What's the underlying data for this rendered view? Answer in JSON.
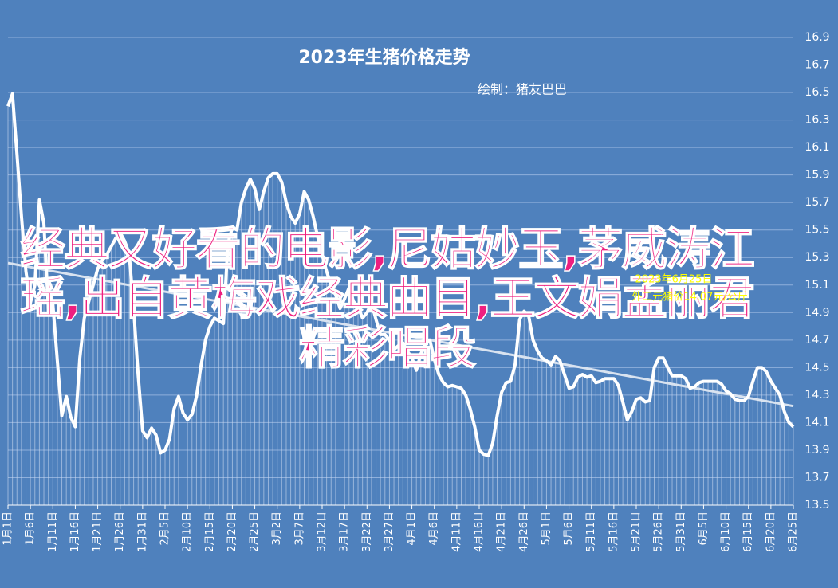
{
  "chart_data": {
    "type": "line",
    "title": "2023年生猪价格走势",
    "subtitle": "绘制：猪友巴巴",
    "annotations": [
      "2023年6月25日",
      "外三元猪价14.07元/公斤"
    ],
    "categories": [
      "1月1日",
      null,
      null,
      null,
      null,
      "1月6日",
      null,
      null,
      null,
      null,
      "1月11日",
      null,
      null,
      null,
      null,
      "1月16日",
      null,
      null,
      null,
      null,
      "1月21日",
      null,
      null,
      null,
      null,
      "1月26日",
      null,
      null,
      null,
      null,
      "1月31日",
      null,
      null,
      null,
      null,
      "2月5日",
      null,
      null,
      null,
      null,
      "2月10日",
      null,
      null,
      null,
      null,
      "2月15日",
      null,
      null,
      null,
      null,
      "2月20日",
      null,
      null,
      null,
      null,
      "2月25日",
      null,
      null,
      null,
      null,
      "3月2日",
      null,
      null,
      null,
      null,
      "3月7日",
      null,
      null,
      null,
      null,
      "3月12日",
      null,
      null,
      null,
      null,
      "3月17日",
      null,
      null,
      null,
      null,
      "3月22日",
      null,
      null,
      null,
      null,
      "3月27日",
      null,
      null,
      null,
      null,
      "4月1日",
      null,
      null,
      null,
      null,
      "4月6日",
      null,
      null,
      null,
      null,
      "4月11日",
      null,
      null,
      null,
      null,
      "4月16日",
      null,
      null,
      null,
      null,
      "4月21日",
      null,
      null,
      null,
      null,
      "4月26日",
      null,
      null,
      null,
      null,
      "5月1日",
      null,
      null,
      null,
      null,
      "5月6日",
      null,
      null,
      null,
      null,
      "5月11日",
      null,
      null,
      null,
      null,
      "5月16日",
      null,
      null,
      null,
      null,
      "5月21日",
      null,
      null,
      null,
      null,
      "5月26日",
      null,
      null,
      null,
      null,
      "5月31日",
      null,
      null,
      null,
      null,
      "6月5日",
      null,
      null,
      null,
      null,
      "6月10日",
      null,
      null,
      null,
      null,
      "6月15日",
      null,
      null,
      null,
      null,
      "6月20日",
      null,
      null,
      null,
      null,
      "6月25日"
    ],
    "values": [
      16.4,
      16.49,
      16.05,
      15.6,
      15.2,
      14.97,
      15.1,
      15.72,
      15.55,
      14.93,
      14.96,
      14.55,
      14.15,
      14.29,
      14.14,
      14.07,
      14.57,
      14.86,
      14.98,
      15.1,
      15.22,
      15.28,
      15.32,
      15.38,
      15.44,
      15.48,
      15.42,
      15.33,
      14.93,
      14.45,
      14.04,
      13.99,
      14.06,
      14.01,
      13.88,
      13.9,
      13.98,
      14.2,
      14.29,
      14.17,
      14.12,
      14.16,
      14.29,
      14.51,
      14.7,
      14.8,
      14.86,
      14.84,
      14.82,
      15.4,
      15.52,
      15.5,
      15.7,
      15.8,
      15.87,
      15.8,
      15.65,
      15.78,
      15.88,
      15.91,
      15.91,
      15.85,
      15.7,
      15.6,
      15.55,
      15.62,
      15.78,
      15.72,
      15.6,
      15.45,
      15.32,
      15.2,
      15.1,
      15.03,
      14.93,
      15.0,
      15.08,
      14.98,
      14.94,
      14.86,
      14.9,
      14.97,
      14.85,
      14.74,
      14.74,
      14.7,
      14.63,
      14.66,
      14.68,
      14.62,
      14.57,
      14.48,
      14.6,
      14.67,
      14.7,
      14.56,
      14.45,
      14.39,
      14.36,
      14.37,
      14.36,
      14.35,
      14.3,
      14.2,
      14.07,
      13.9,
      13.87,
      13.86,
      13.95,
      14.15,
      14.32,
      14.39,
      14.4,
      14.52,
      14.85,
      14.91,
      14.88,
      14.7,
      14.62,
      14.57,
      14.55,
      14.52,
      14.58,
      14.55,
      14.45,
      14.35,
      14.36,
      14.43,
      14.45,
      14.43,
      14.44,
      14.39,
      14.4,
      14.42,
      14.42,
      14.42,
      14.37,
      14.25,
      14.12,
      14.18,
      14.27,
      14.28,
      14.25,
      14.26,
      14.5,
      14.57,
      14.57,
      14.5,
      14.44,
      14.44,
      14.44,
      14.42,
      14.35,
      14.36,
      14.39,
      14.4,
      14.4,
      14.4,
      14.4,
      14.38,
      14.33,
      14.31,
      14.27,
      14.26,
      14.26,
      14.29,
      14.4,
      14.5,
      14.5,
      14.47,
      14.4,
      14.35,
      14.3,
      14.18,
      14.1,
      14.07
    ],
    "color": "#ffffff",
    "trendline": [
      15.26,
      14.22
    ],
    "ylim": [
      13.5,
      16.9
    ],
    "yticks": [
      13.5,
      13.7,
      13.9,
      14.1,
      14.3,
      14.5,
      14.7,
      14.9,
      15.1,
      15.3,
      15.5,
      15.7,
      15.9,
      16.1,
      16.3,
      16.5,
      16.7,
      16.9
    ],
    "grid": true
  },
  "overlay_text": "经典又好看的电影,尼姑妙玉,茅威涛江瑶,出自黄梅戏经典曲目,王文娟孟丽君精彩唱段"
}
